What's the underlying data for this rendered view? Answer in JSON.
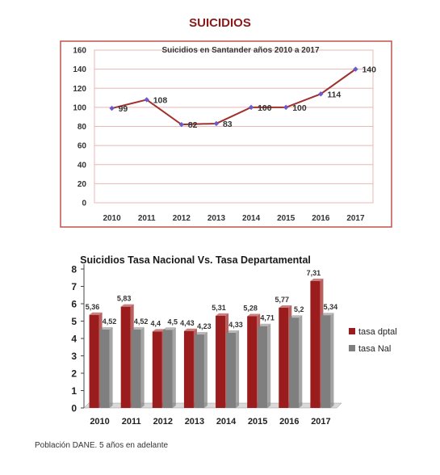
{
  "page": {
    "title": "SUICIDIOS",
    "footer": "Población DANE. 5 años en adelante"
  },
  "colors": {
    "line": "#a0302e",
    "marker": "#6a5acd",
    "grid1": "#e8b8b4",
    "border1": "#c0504d",
    "bar_dptal": "#9b1c1c",
    "bar_nal": "#7f7f7f",
    "title_dark": "#8b1a1a"
  },
  "chart_data": [
    {
      "type": "line",
      "title": "Suicidios en Santander años 2010 a 2017",
      "categories": [
        "2010",
        "2011",
        "2012",
        "2013",
        "2014",
        "2015",
        "2016",
        "2017"
      ],
      "values": [
        99,
        108,
        82,
        83,
        100,
        100,
        114,
        140
      ],
      "yticks": [
        "0",
        "20",
        "40",
        "60",
        "80",
        "100",
        "120",
        "140",
        "160"
      ],
      "ylim": [
        0,
        160
      ],
      "grid": true
    },
    {
      "type": "bar",
      "title": "Suicidios Tasa Nacional Vs. Tasa Departamental",
      "categories": [
        "2010",
        "2011",
        "2012",
        "2013",
        "2014",
        "2015",
        "2016",
        "2017"
      ],
      "series": [
        {
          "name": "tasa dptal",
          "values": [
            5.36,
            5.83,
            4.4,
            4.43,
            5.31,
            5.28,
            5.77,
            7.31
          ],
          "labels": [
            "5,36",
            "5,83",
            "4,4",
            "4,43",
            "5,31",
            "5,28",
            "5,77",
            "7,31"
          ]
        },
        {
          "name": "tasa Nal",
          "values": [
            4.52,
            4.52,
            4.5,
            4.23,
            4.33,
            4.71,
            5.2,
            5.34
          ],
          "labels": [
            "4,52",
            "4,52",
            "4,5",
            "4,23",
            "4,33",
            "4,71",
            "5,2",
            "5,34"
          ]
        }
      ],
      "yticks": [
        "0",
        "1",
        "2",
        "3",
        "4",
        "5",
        "6",
        "7",
        "8"
      ],
      "ylim": [
        0,
        8
      ],
      "legend": "right"
    }
  ]
}
